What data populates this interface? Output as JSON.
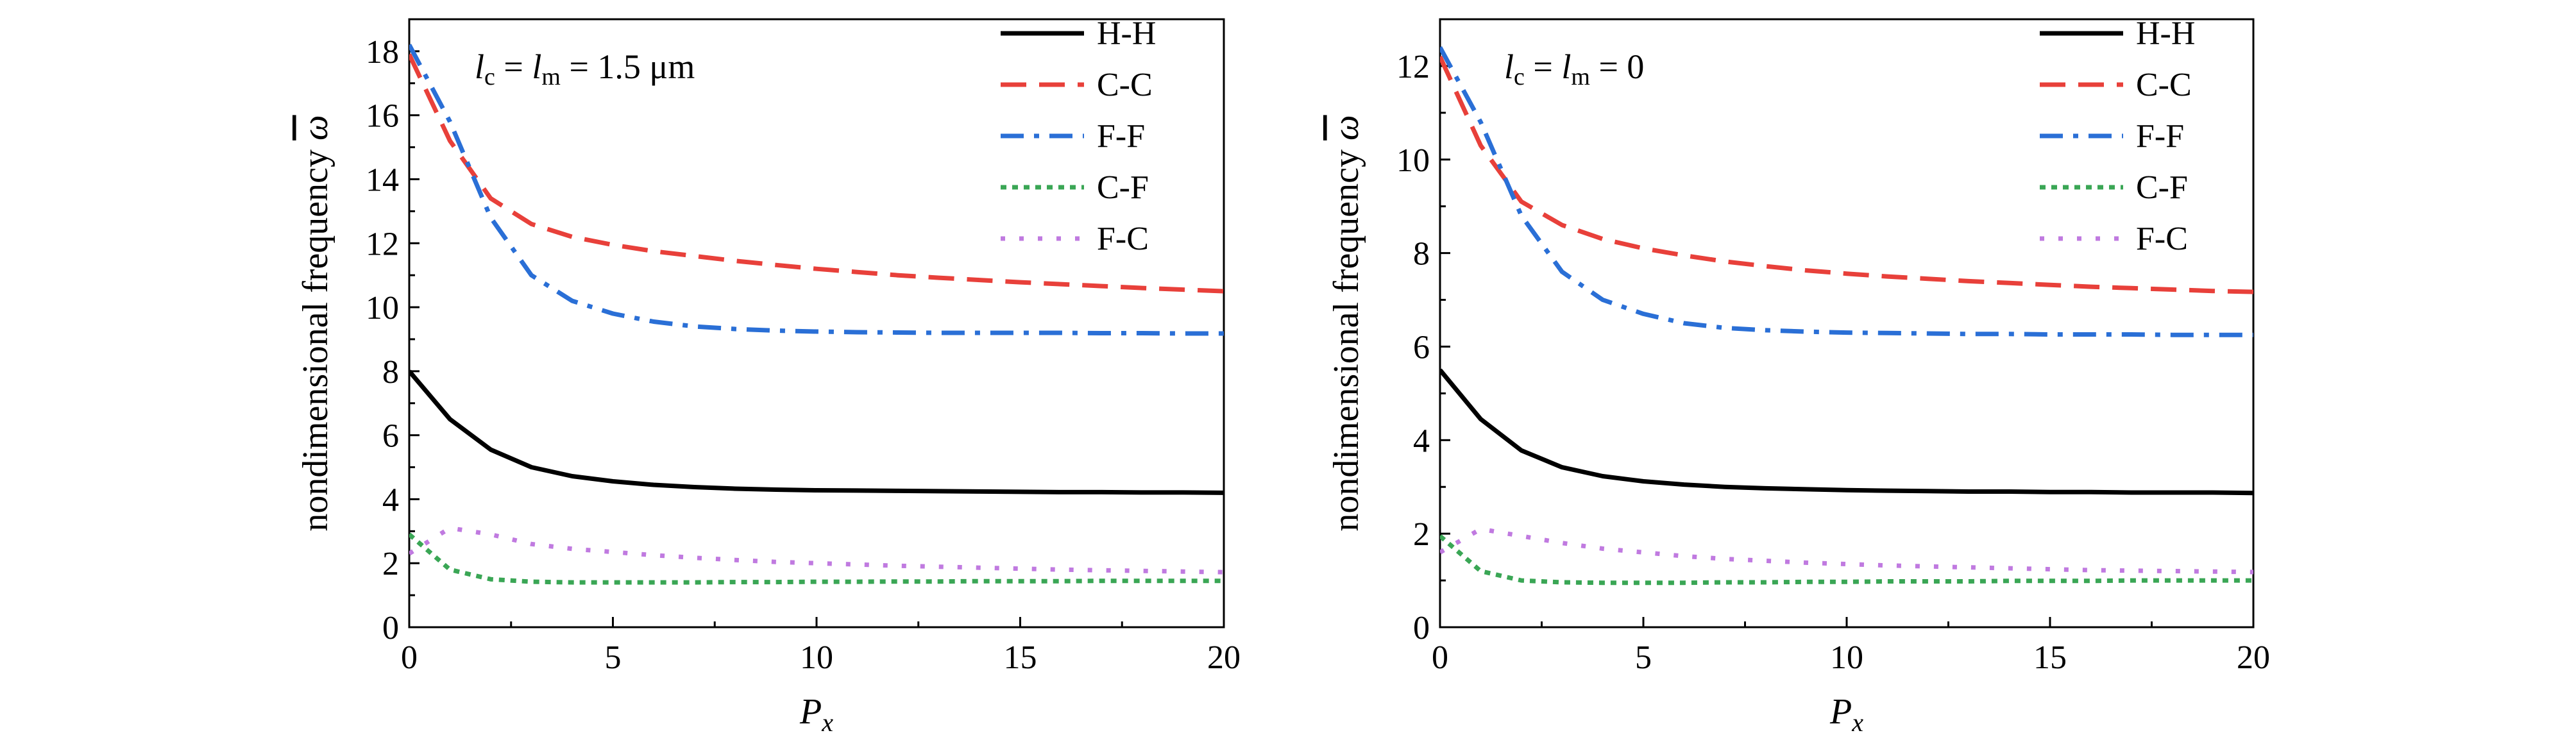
{
  "chart_data": [
    {
      "type": "line",
      "annotation": "l_c = l_m = 1.5 μm",
      "annotation_parts": {
        "l1": "l",
        "s1": "c",
        "eq1": " = ",
        "l2": "l",
        "s2": "m",
        "rest": " = 1.5 μm"
      },
      "xlabel": "P_x",
      "xlabel_parts": {
        "main": "P",
        "sub": "x"
      },
      "ylabel": "nondimensional frequency ω̄",
      "ylabel_parts": {
        "text": "nondimensional frequency ",
        "sym": "ω"
      },
      "xlim": [
        0,
        20
      ],
      "ylim": [
        0,
        19
      ],
      "xticks": [
        "0",
        "5",
        "10",
        "15",
        "20"
      ],
      "yticks": [
        "0",
        "2",
        "4",
        "6",
        "8",
        "10",
        "12",
        "14",
        "16",
        "18"
      ],
      "legend_position": "top-right",
      "x": [
        0,
        1,
        2,
        3,
        4,
        5,
        6,
        7,
        8,
        9,
        10,
        11,
        12,
        13,
        14,
        15,
        16,
        17,
        18,
        19,
        20
      ],
      "series": [
        {
          "name": "H-H",
          "color": "#000000",
          "dash": "solid",
          "values": [
            8.0,
            6.5,
            5.55,
            5.0,
            4.72,
            4.56,
            4.45,
            4.38,
            4.33,
            4.3,
            4.28,
            4.27,
            4.26,
            4.25,
            4.24,
            4.23,
            4.22,
            4.22,
            4.21,
            4.21,
            4.2
          ]
        },
        {
          "name": "C-C",
          "color": "#e8403a",
          "dash": "dashed",
          "values": [
            17.9,
            15.2,
            13.4,
            12.6,
            12.2,
            11.95,
            11.75,
            11.6,
            11.45,
            11.32,
            11.2,
            11.1,
            11.0,
            10.92,
            10.85,
            10.78,
            10.72,
            10.66,
            10.6,
            10.55,
            10.5
          ]
        },
        {
          "name": "F-F",
          "color": "#2a6fd6",
          "dash": "dashdot",
          "values": [
            18.2,
            15.8,
            12.8,
            11.0,
            10.2,
            9.8,
            9.55,
            9.4,
            9.32,
            9.27,
            9.24,
            9.22,
            9.21,
            9.2,
            9.2,
            9.2,
            9.2,
            9.19,
            9.19,
            9.18,
            9.18
          ]
        },
        {
          "name": "C-F",
          "color": "#3aa655",
          "dash": "dotted",
          "values": [
            2.9,
            1.8,
            1.5,
            1.42,
            1.4,
            1.4,
            1.4,
            1.4,
            1.41,
            1.41,
            1.42,
            1.42,
            1.43,
            1.43,
            1.44,
            1.44,
            1.44,
            1.45,
            1.45,
            1.45,
            1.45
          ]
        },
        {
          "name": "F-C",
          "color": "#c07ae0",
          "dash": "dotted-sparse",
          "values": [
            2.3,
            3.1,
            2.9,
            2.6,
            2.45,
            2.35,
            2.25,
            2.17,
            2.1,
            2.04,
            2.0,
            1.96,
            1.92,
            1.89,
            1.86,
            1.83,
            1.8,
            1.78,
            1.76,
            1.74,
            1.72
          ]
        }
      ]
    },
    {
      "type": "line",
      "annotation": "l_c = l_m = 0",
      "annotation_parts": {
        "l1": "l",
        "s1": "c",
        "eq1": " = ",
        "l2": "l",
        "s2": "m",
        "rest": " = 0"
      },
      "xlabel": "P_x",
      "xlabel_parts": {
        "main": "P",
        "sub": "x"
      },
      "ylabel": "nondimensional frequency ω̄",
      "ylabel_parts": {
        "text": "nondimensional frequency ",
        "sym": "ω"
      },
      "xlim": [
        0,
        20
      ],
      "ylim": [
        0,
        13
      ],
      "xticks": [
        "0",
        "5",
        "10",
        "15",
        "20"
      ],
      "yticks": [
        "0",
        "2",
        "4",
        "6",
        "8",
        "10",
        "12"
      ],
      "legend_position": "top-right",
      "x": [
        0,
        1,
        2,
        3,
        4,
        5,
        6,
        7,
        8,
        9,
        10,
        11,
        12,
        13,
        14,
        15,
        16,
        17,
        18,
        19,
        20
      ],
      "series": [
        {
          "name": "H-H",
          "color": "#000000",
          "dash": "solid",
          "values": [
            5.5,
            4.45,
            3.78,
            3.42,
            3.23,
            3.12,
            3.05,
            3.0,
            2.97,
            2.95,
            2.93,
            2.92,
            2.91,
            2.9,
            2.9,
            2.89,
            2.89,
            2.88,
            2.88,
            2.88,
            2.87
          ]
        },
        {
          "name": "C-C",
          "color": "#e8403a",
          "dash": "dashed",
          "values": [
            12.2,
            10.3,
            9.1,
            8.6,
            8.3,
            8.1,
            7.95,
            7.82,
            7.72,
            7.63,
            7.56,
            7.5,
            7.45,
            7.4,
            7.36,
            7.32,
            7.28,
            7.25,
            7.22,
            7.19,
            7.17
          ]
        },
        {
          "name": "F-F",
          "color": "#2a6fd6",
          "dash": "dashdot",
          "values": [
            12.4,
            10.8,
            8.8,
            7.6,
            7.0,
            6.7,
            6.5,
            6.4,
            6.35,
            6.32,
            6.3,
            6.29,
            6.28,
            6.27,
            6.27,
            6.26,
            6.26,
            6.26,
            6.25,
            6.25,
            6.25
          ]
        },
        {
          "name": "C-F",
          "color": "#3aa655",
          "dash": "dotted",
          "values": [
            1.95,
            1.2,
            1.0,
            0.96,
            0.95,
            0.95,
            0.95,
            0.96,
            0.96,
            0.97,
            0.97,
            0.98,
            0.98,
            0.98,
            0.99,
            0.99,
            0.99,
            1.0,
            1.0,
            1.0,
            1.0
          ]
        },
        {
          "name": "F-C",
          "color": "#c07ae0",
          "dash": "dotted-sparse",
          "values": [
            1.6,
            2.1,
            1.95,
            1.8,
            1.68,
            1.6,
            1.52,
            1.46,
            1.42,
            1.38,
            1.35,
            1.32,
            1.3,
            1.28,
            1.26,
            1.24,
            1.22,
            1.21,
            1.2,
            1.19,
            1.18
          ]
        }
      ]
    }
  ]
}
